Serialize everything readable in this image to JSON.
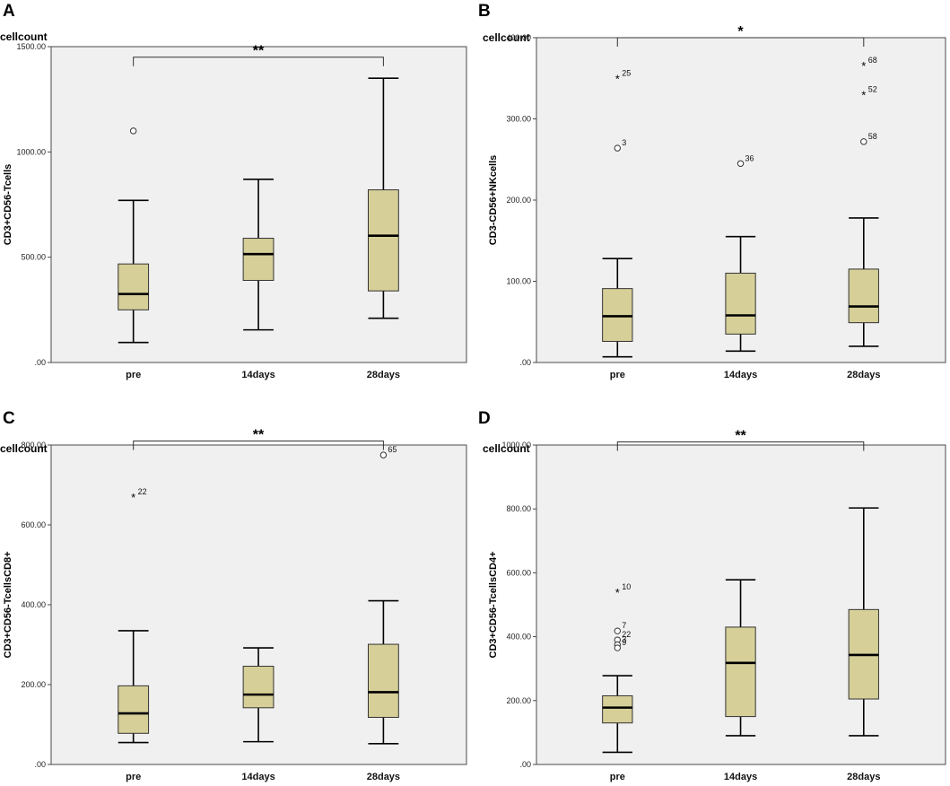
{
  "chart_data": [
    {
      "type": "box",
      "panel": "A",
      "unit_label": "cellcount",
      "ylabel": "CD3+CD56-Tcells",
      "ylim": [
        0,
        1500
      ],
      "yticks": [
        0,
        500,
        1000,
        1500
      ],
      "ytick_labels": [
        ".00",
        "500.00",
        "1000.00",
        "1500.00"
      ],
      "categories": [
        "pre",
        "14days",
        "28days"
      ],
      "boxes": [
        {
          "min": 95,
          "q1": 250,
          "median": 325,
          "q3": 468,
          "max": 770,
          "outliers": [
            {
              "value": 1100,
              "marker": "circle",
              "label": ""
            }
          ]
        },
        {
          "min": 155,
          "q1": 390,
          "median": 515,
          "q3": 590,
          "max": 870,
          "outliers": []
        },
        {
          "min": 210,
          "q1": 340,
          "median": 602,
          "q3": 820,
          "max": 1350,
          "outliers": []
        }
      ],
      "significance": {
        "from": 0,
        "to": 2,
        "label": "**",
        "y": 1450
      }
    },
    {
      "type": "box",
      "panel": "B",
      "unit_label": "cellcount",
      "ylabel": "CD3-CD56+NKcells",
      "ylim": [
        0,
        400
      ],
      "yticks": [
        0,
        100,
        200,
        300,
        400
      ],
      "ytick_labels": [
        ".00",
        "100.00",
        "200.00",
        "300.00",
        "400.00"
      ],
      "categories": [
        "pre",
        "14days",
        "28days"
      ],
      "boxes": [
        {
          "min": 7,
          "q1": 26,
          "median": 57,
          "q3": 91,
          "max": 128,
          "outliers": [
            {
              "value": 350,
              "marker": "star",
              "label": "25"
            },
            {
              "value": 264,
              "marker": "circle",
              "label": "3"
            }
          ]
        },
        {
          "min": 14,
          "q1": 35,
          "median": 58,
          "q3": 110,
          "max": 155,
          "outliers": [
            {
              "value": 245,
              "marker": "circle",
              "label": "36"
            }
          ]
        },
        {
          "min": 20,
          "q1": 49,
          "median": 69,
          "q3": 115,
          "max": 178,
          "outliers": [
            {
              "value": 366,
              "marker": "star",
              "label": "68"
            },
            {
              "value": 330,
              "marker": "star",
              "label": "52"
            },
            {
              "value": 272,
              "marker": "circle",
              "label": "58"
            }
          ]
        }
      ],
      "significance": {
        "from": 0,
        "to": 2,
        "label": "*",
        "y": 400
      }
    },
    {
      "type": "box",
      "panel": "C",
      "unit_label": "cellcount",
      "ylabel": "CD3+CD56-TcellsCD8+",
      "ylim": [
        0,
        800
      ],
      "yticks": [
        0,
        200,
        400,
        600,
        800
      ],
      "ytick_labels": [
        ".00",
        "200.00",
        "400.00",
        "600.00",
        "800.00"
      ],
      "categories": [
        "pre",
        "14days",
        "28days"
      ],
      "boxes": [
        {
          "min": 55,
          "q1": 78,
          "median": 128,
          "q3": 197,
          "max": 335,
          "outliers": [
            {
              "value": 670,
              "marker": "star",
              "label": "22"
            }
          ]
        },
        {
          "min": 57,
          "q1": 142,
          "median": 175,
          "q3": 246,
          "max": 292,
          "outliers": []
        },
        {
          "min": 52,
          "q1": 118,
          "median": 181,
          "q3": 301,
          "max": 410,
          "outliers": [
            {
              "value": 775,
              "marker": "circle",
              "label": "65"
            }
          ]
        }
      ],
      "significance": {
        "from": 0,
        "to": 2,
        "label": "**",
        "y": 810
      }
    },
    {
      "type": "box",
      "panel": "D",
      "unit_label": "cellcount",
      "ylabel": "CD3+CD56-TcellsCD4+",
      "ylim": [
        0,
        1000
      ],
      "yticks": [
        0,
        200,
        400,
        600,
        800,
        1000
      ],
      "ytick_labels": [
        ".00",
        "200.00",
        "400.00",
        "600.00",
        "800.00",
        "1000.00"
      ],
      "categories": [
        "pre",
        "14days",
        "28days"
      ],
      "boxes": [
        {
          "min": 38,
          "q1": 130,
          "median": 178,
          "q3": 215,
          "max": 278,
          "outliers": [
            {
              "value": 540,
              "marker": "star",
              "label": "10"
            },
            {
              "value": 418,
              "marker": "circle",
              "label": "7"
            },
            {
              "value": 390,
              "marker": "circle",
              "label": "22"
            },
            {
              "value": 375,
              "marker": "circle",
              "label": "3"
            },
            {
              "value": 365,
              "marker": "circle",
              "label": "9"
            }
          ]
        },
        {
          "min": 90,
          "q1": 150,
          "median": 318,
          "q3": 430,
          "max": 578,
          "outliers": []
        },
        {
          "min": 90,
          "q1": 205,
          "median": 343,
          "q3": 485,
          "max": 803,
          "outliers": []
        }
      ],
      "significance": {
        "from": 0,
        "to": 2,
        "label": "**",
        "y": 1010
      }
    }
  ],
  "colors": {
    "box_fill": "#d6cf98",
    "plot_background": "#f0f0f0"
  }
}
